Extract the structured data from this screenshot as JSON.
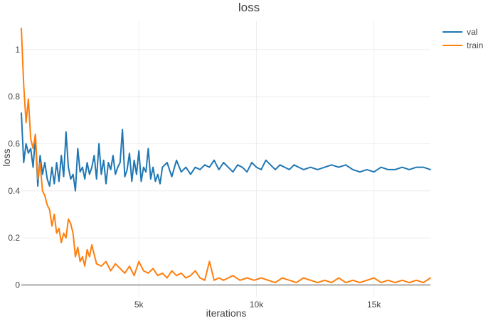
{
  "chart_data": {
    "type": "line",
    "title": "loss",
    "xlabel": "iterations",
    "ylabel": "loss",
    "xlim": [
      0,
      17400
    ],
    "ylim": [
      -0.05,
      1.12
    ],
    "x_ticks": [
      {
        "value": 5000,
        "label": "5k"
      },
      {
        "value": 10000,
        "label": "10k"
      },
      {
        "value": 15000,
        "label": "15k"
      }
    ],
    "y_ticks": [
      {
        "value": 0,
        "label": "0"
      },
      {
        "value": 0.2,
        "label": "0.2"
      },
      {
        "value": 0.4,
        "label": "0.4"
      },
      {
        "value": 0.6,
        "label": "0.6"
      },
      {
        "value": 0.8,
        "label": "0.8"
      },
      {
        "value": 1,
        "label": "1"
      }
    ],
    "grid": true,
    "legend_position": "top-right",
    "series": [
      {
        "name": "val",
        "color": "#1f77b4",
        "x": [
          0,
          100,
          200,
          300,
          400,
          500,
          600,
          700,
          800,
          900,
          1000,
          1100,
          1200,
          1300,
          1400,
          1500,
          1600,
          1700,
          1800,
          1900,
          2000,
          2100,
          2200,
          2300,
          2400,
          2500,
          2600,
          2700,
          2800,
          2900,
          3000,
          3100,
          3200,
          3300,
          3400,
          3500,
          3600,
          3700,
          3800,
          3900,
          4000,
          4100,
          4200,
          4300,
          4400,
          4500,
          4600,
          4700,
          4800,
          4900,
          5000,
          5100,
          5200,
          5300,
          5400,
          5500,
          5600,
          5700,
          5800,
          5900,
          6000,
          6200,
          6400,
          6600,
          6800,
          7000,
          7200,
          7400,
          7600,
          7800,
          8000,
          8200,
          8400,
          8600,
          8800,
          9000,
          9200,
          9400,
          9600,
          9800,
          10000,
          10200,
          10400,
          10600,
          10800,
          11000,
          11200,
          11400,
          11600,
          11800,
          12000,
          12300,
          12600,
          12900,
          13200,
          13500,
          13800,
          14100,
          14400,
          14700,
          15000,
          15300,
          15600,
          15900,
          16200,
          16500,
          16800,
          17100,
          17400
        ],
        "y": [
          0.73,
          0.52,
          0.6,
          0.56,
          0.58,
          0.5,
          0.63,
          0.42,
          0.55,
          0.47,
          0.52,
          0.45,
          0.42,
          0.5,
          0.43,
          0.52,
          0.44,
          0.55,
          0.46,
          0.65,
          0.5,
          0.45,
          0.47,
          0.4,
          0.58,
          0.48,
          0.5,
          0.45,
          0.52,
          0.47,
          0.5,
          0.55,
          0.45,
          0.6,
          0.47,
          0.53,
          0.43,
          0.52,
          0.49,
          0.55,
          0.47,
          0.5,
          0.52,
          0.66,
          0.46,
          0.49,
          0.56,
          0.44,
          0.53,
          0.47,
          0.57,
          0.44,
          0.5,
          0.48,
          0.58,
          0.45,
          0.5,
          0.44,
          0.47,
          0.43,
          0.5,
          0.52,
          0.46,
          0.53,
          0.48,
          0.5,
          0.47,
          0.5,
          0.49,
          0.51,
          0.5,
          0.53,
          0.49,
          0.52,
          0.5,
          0.48,
          0.51,
          0.5,
          0.48,
          0.52,
          0.5,
          0.49,
          0.53,
          0.51,
          0.49,
          0.51,
          0.5,
          0.49,
          0.51,
          0.5,
          0.49,
          0.5,
          0.49,
          0.5,
          0.51,
          0.5,
          0.51,
          0.49,
          0.48,
          0.49,
          0.48,
          0.5,
          0.49,
          0.49,
          0.5,
          0.49,
          0.5,
          0.5,
          0.49
        ]
      },
      {
        "name": "train",
        "color": "#ff7f0e",
        "x": [
          0,
          100,
          200,
          300,
          400,
          500,
          600,
          700,
          800,
          900,
          1000,
          1100,
          1200,
          1300,
          1400,
          1500,
          1600,
          1700,
          1800,
          1900,
          2000,
          2100,
          2200,
          2300,
          2400,
          2500,
          2600,
          2700,
          2800,
          2900,
          3000,
          3200,
          3400,
          3600,
          3800,
          4000,
          4200,
          4400,
          4600,
          4800,
          5000,
          5200,
          5400,
          5600,
          5800,
          6000,
          6200,
          6400,
          6600,
          6800,
          7000,
          7200,
          7400,
          7600,
          7800,
          8000,
          8200,
          8400,
          8600,
          8800,
          9000,
          9300,
          9600,
          9900,
          10200,
          10500,
          10800,
          11100,
          11400,
          11700,
          12000,
          12300,
          12600,
          12900,
          13200,
          13500,
          13800,
          14100,
          14400,
          14700,
          15000,
          15300,
          15600,
          15900,
          16200,
          16500,
          16800,
          17100,
          17400
        ],
        "y": [
          1.09,
          0.85,
          0.69,
          0.79,
          0.62,
          0.58,
          0.64,
          0.45,
          0.52,
          0.4,
          0.38,
          0.34,
          0.32,
          0.25,
          0.3,
          0.22,
          0.24,
          0.18,
          0.22,
          0.2,
          0.28,
          0.26,
          0.22,
          0.12,
          0.16,
          0.1,
          0.12,
          0.08,
          0.15,
          0.12,
          0.17,
          0.09,
          0.08,
          0.1,
          0.06,
          0.09,
          0.07,
          0.05,
          0.08,
          0.04,
          0.1,
          0.06,
          0.05,
          0.07,
          0.04,
          0.05,
          0.03,
          0.06,
          0.04,
          0.05,
          0.03,
          0.04,
          0.06,
          0.03,
          0.02,
          0.1,
          0.02,
          0.03,
          0.02,
          0.03,
          0.04,
          0.02,
          0.03,
          0.02,
          0.03,
          0.02,
          0.01,
          0.03,
          0.02,
          0.01,
          0.03,
          0.02,
          0.01,
          0.02,
          0.01,
          0.03,
          0.01,
          0.02,
          0.01,
          0.02,
          0.03,
          0.01,
          0.02,
          0.01,
          0.02,
          0.01,
          0.02,
          0.01,
          0.03
        ]
      }
    ]
  }
}
